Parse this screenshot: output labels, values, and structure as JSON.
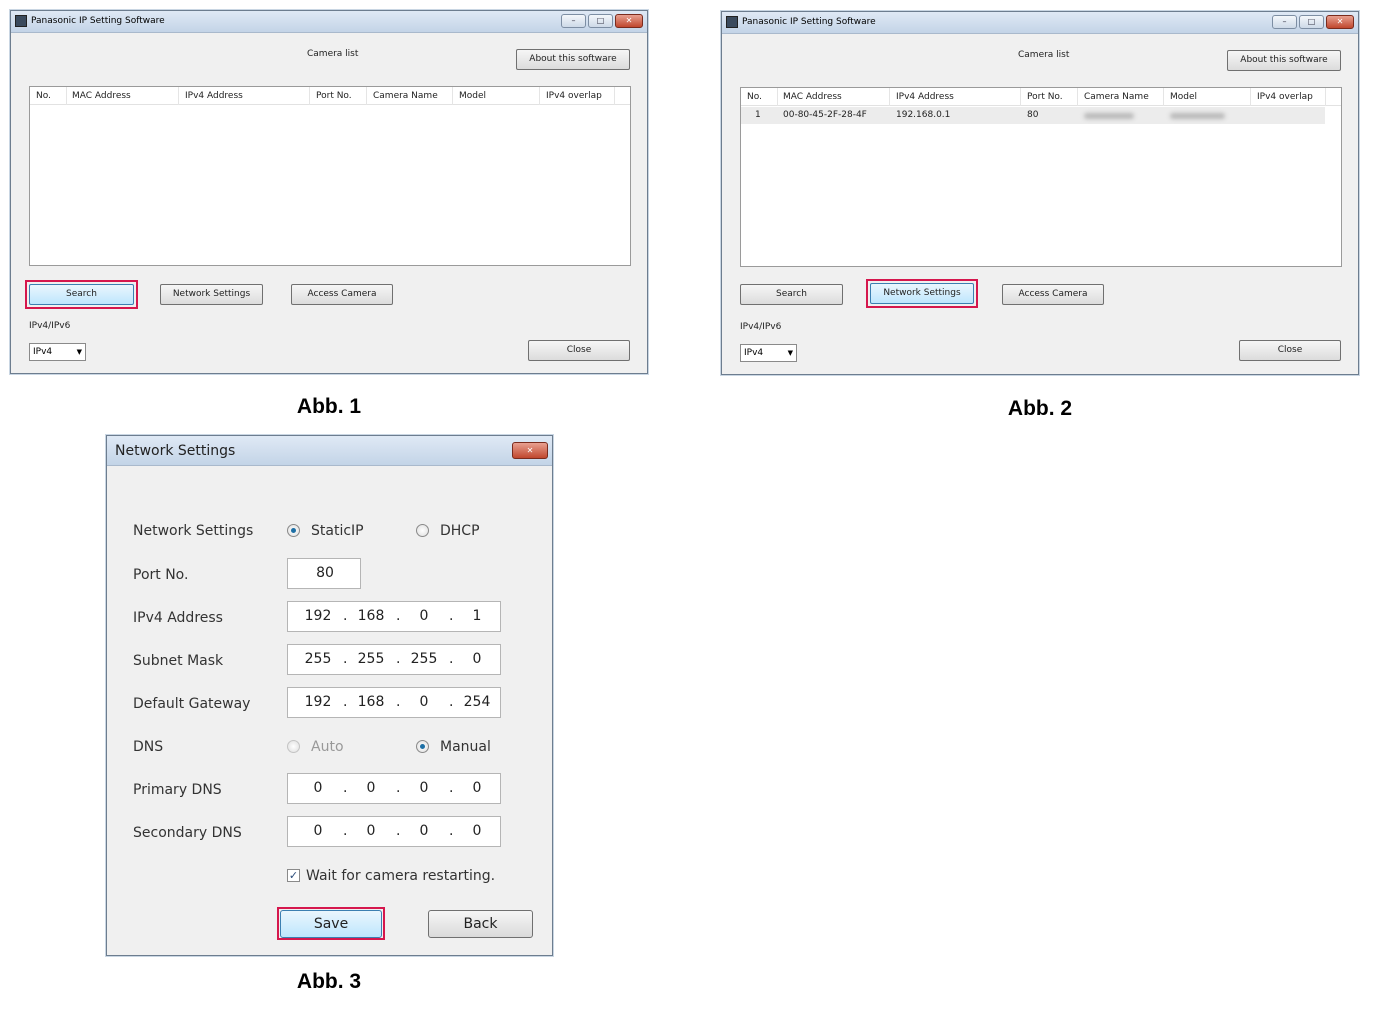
{
  "figure1": {
    "caption": "Abb. 1",
    "window_title": "Panasonic IP Setting Software",
    "heading": "Camera list",
    "about_label": "About this software",
    "columns": [
      "No.",
      "MAC Address",
      "IPv4 Address",
      "Port No.",
      "Camera Name",
      "Model",
      "IPv4 overlap"
    ],
    "rows": [],
    "search_label": "Search",
    "network_settings_label": "Network Settings",
    "access_camera_label": "Access Camera",
    "ip_version_label": "IPv4/IPv6",
    "ip_version_value": "IPv4",
    "close_label": "Close",
    "highlighted": "Search"
  },
  "figure2": {
    "caption": "Abb. 2",
    "window_title": "Panasonic IP Setting Software",
    "heading": "Camera list",
    "about_label": "About this software",
    "columns": [
      "No.",
      "MAC Address",
      "IPv4 Address",
      "Port No.",
      "Camera Name",
      "Model",
      "IPv4 overlap"
    ],
    "rows": [
      {
        "no": "1",
        "mac": "00-80-45-2F-28-4F",
        "ipv4": "192.168.0.1",
        "port": "80"
      }
    ],
    "search_label": "Search",
    "network_settings_label": "Network Settings",
    "access_camera_label": "Access Camera",
    "ip_version_label": "IPv4/IPv6",
    "ip_version_value": "IPv4",
    "close_label": "Close",
    "highlighted": "Network Settings"
  },
  "figure3": {
    "caption": "Abb. 3",
    "window_title": "Network Settings",
    "network_settings_label": "Network Settings",
    "static_ip_label": "StaticIP",
    "dhcp_label": "DHCP",
    "mode_selected": "StaticIP",
    "port_label": "Port No.",
    "port_value": "80",
    "ipv4_label": "IPv4 Address",
    "ipv4": [
      "192",
      "168",
      "0",
      "1"
    ],
    "subnet_label": "Subnet Mask",
    "subnet": [
      "255",
      "255",
      "255",
      "0"
    ],
    "gateway_label": "Default Gateway",
    "gateway": [
      "192",
      "168",
      "0",
      "254"
    ],
    "dns_label": "DNS",
    "dns_auto_label": "Auto",
    "dns_manual_label": "Manual",
    "dns_selected": "Manual",
    "primary_dns_label": "Primary DNS",
    "primary_dns": [
      "0",
      "0",
      "0",
      "0"
    ],
    "secondary_dns_label": "Secondary DNS",
    "secondary_dns": [
      "0",
      "0",
      "0",
      "0"
    ],
    "wait_label": "Wait for camera restarting.",
    "wait_checked": true,
    "save_label": "Save",
    "back_label": "Back",
    "highlighted": "Save"
  },
  "colors": {
    "highlight": "#d5174d",
    "radio_selected": "#1d6fa5"
  }
}
